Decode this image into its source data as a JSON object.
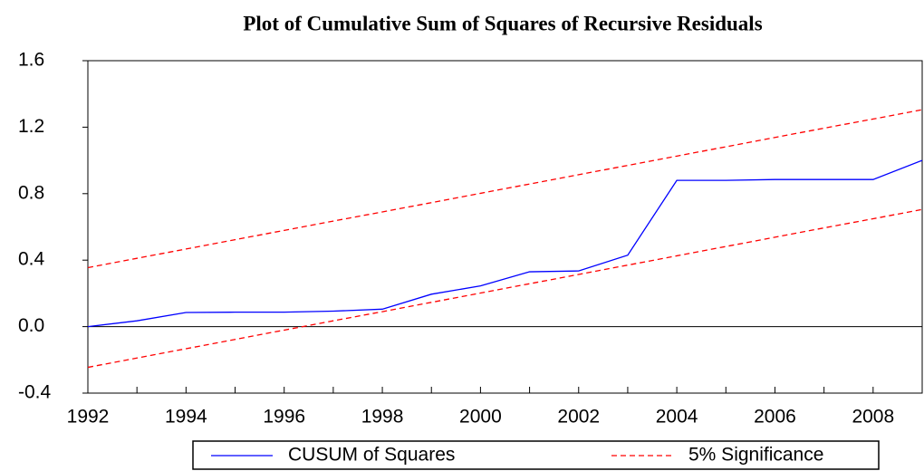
{
  "chart_data": {
    "type": "line",
    "title": "Plot of Cumulative Sum of Squares of Recursive Residuals",
    "x": [
      1992,
      1993,
      1994,
      1995,
      1996,
      1997,
      1998,
      1999,
      2000,
      2001,
      2002,
      2003,
      2004,
      2005,
      2006,
      2007,
      2008,
      2009
    ],
    "series": [
      {
        "name": "CUSUM of Squares",
        "color": "#0000ff",
        "dashed": false,
        "values": [
          0.0,
          0.035,
          0.085,
          0.087,
          0.087,
          0.093,
          0.105,
          0.195,
          0.245,
          0.33,
          0.335,
          0.43,
          0.88,
          0.88,
          0.885,
          0.885,
          0.885,
          1.0
        ]
      },
      {
        "name": "5% Significance",
        "color": "#ff0000",
        "dashed": true,
        "values": [
          0.355,
          0.411,
          0.467,
          0.523,
          0.579,
          0.635,
          0.69,
          0.746,
          0.802,
          0.858,
          0.914,
          0.97,
          1.026,
          1.082,
          1.138,
          1.194,
          1.249,
          1.305
        ],
        "lower": [
          -0.245,
          -0.189,
          -0.133,
          -0.077,
          -0.021,
          0.035,
          0.09,
          0.146,
          0.202,
          0.258,
          0.314,
          0.37,
          0.426,
          0.482,
          0.538,
          0.594,
          0.649,
          0.705
        ]
      }
    ],
    "xlim": [
      1992,
      2009
    ],
    "xticks": [
      1992,
      1994,
      1996,
      1998,
      2000,
      2002,
      2004,
      2006,
      2008
    ],
    "ylim": [
      -0.4,
      1.6
    ],
    "yticks": [
      1.6,
      1.2,
      0.8,
      0.4,
      {
        "value": 0,
        "label": "0.0"
      },
      -0.4
    ],
    "zero_line": true,
    "legend": "bottom"
  }
}
